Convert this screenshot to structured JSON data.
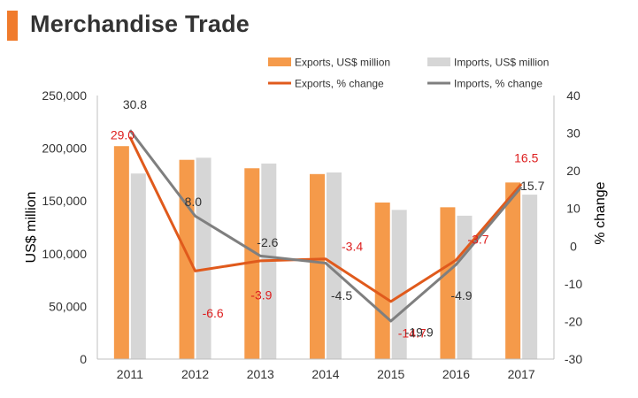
{
  "page": {
    "title": "Merchandise Trade",
    "accent_color": "#f07b2c"
  },
  "chart_data": {
    "type": "bar",
    "categories": [
      "2011",
      "2012",
      "2013",
      "2014",
      "2015",
      "2016",
      "2017"
    ],
    "series": [
      {
        "name": "Exports, US$ million",
        "kind": "bar",
        "axis": "left",
        "color": "#f59a4a",
        "values": [
          202000,
          189000,
          181000,
          175500,
          148500,
          144000,
          167500
        ]
      },
      {
        "name": "Imports, US$ million",
        "kind": "bar",
        "axis": "left",
        "color": "#d6d6d6",
        "values": [
          176000,
          191000,
          185500,
          177000,
          141500,
          136000,
          156000
        ]
      },
      {
        "name": "Exports, % change",
        "kind": "line",
        "axis": "right",
        "color": "#e05a1c",
        "label_color": "#dd1f1f",
        "values": [
          29.0,
          -6.6,
          -3.9,
          -3.4,
          -14.7,
          -3.7,
          16.5
        ],
        "labels": [
          "29.0",
          "-6.6",
          "-3.9",
          "-3.4",
          "-14.7",
          "-3.7",
          "16.5"
        ]
      },
      {
        "name": "Imports, % change",
        "kind": "line",
        "axis": "right",
        "color": "#7f7f7f",
        "label_color": "#333333",
        "values": [
          30.8,
          8.0,
          -2.6,
          -4.5,
          -19.9,
          -4.9,
          15.7
        ],
        "labels": [
          "30.8",
          "8.0",
          "-2.6",
          "-4.5",
          "-19.9",
          "-4.9",
          "15.7"
        ]
      }
    ],
    "ylabel": "US$ million",
    "y2label": "% change",
    "ylim": [
      0,
      250000
    ],
    "y2lim": [
      -30,
      40
    ],
    "yticks": [
      "0",
      "50,000",
      "100,000",
      "150,000",
      "200,000",
      "250,000"
    ],
    "yticks_values": [
      0,
      50000,
      100000,
      150000,
      200000,
      250000
    ],
    "y2ticks": [
      "-30",
      "-20",
      "-10",
      "0",
      "10",
      "20",
      "30",
      "40"
    ],
    "y2ticks_values": [
      -30,
      -20,
      -10,
      0,
      10,
      20,
      30,
      40
    ],
    "grid": false,
    "legend_position": "top"
  }
}
